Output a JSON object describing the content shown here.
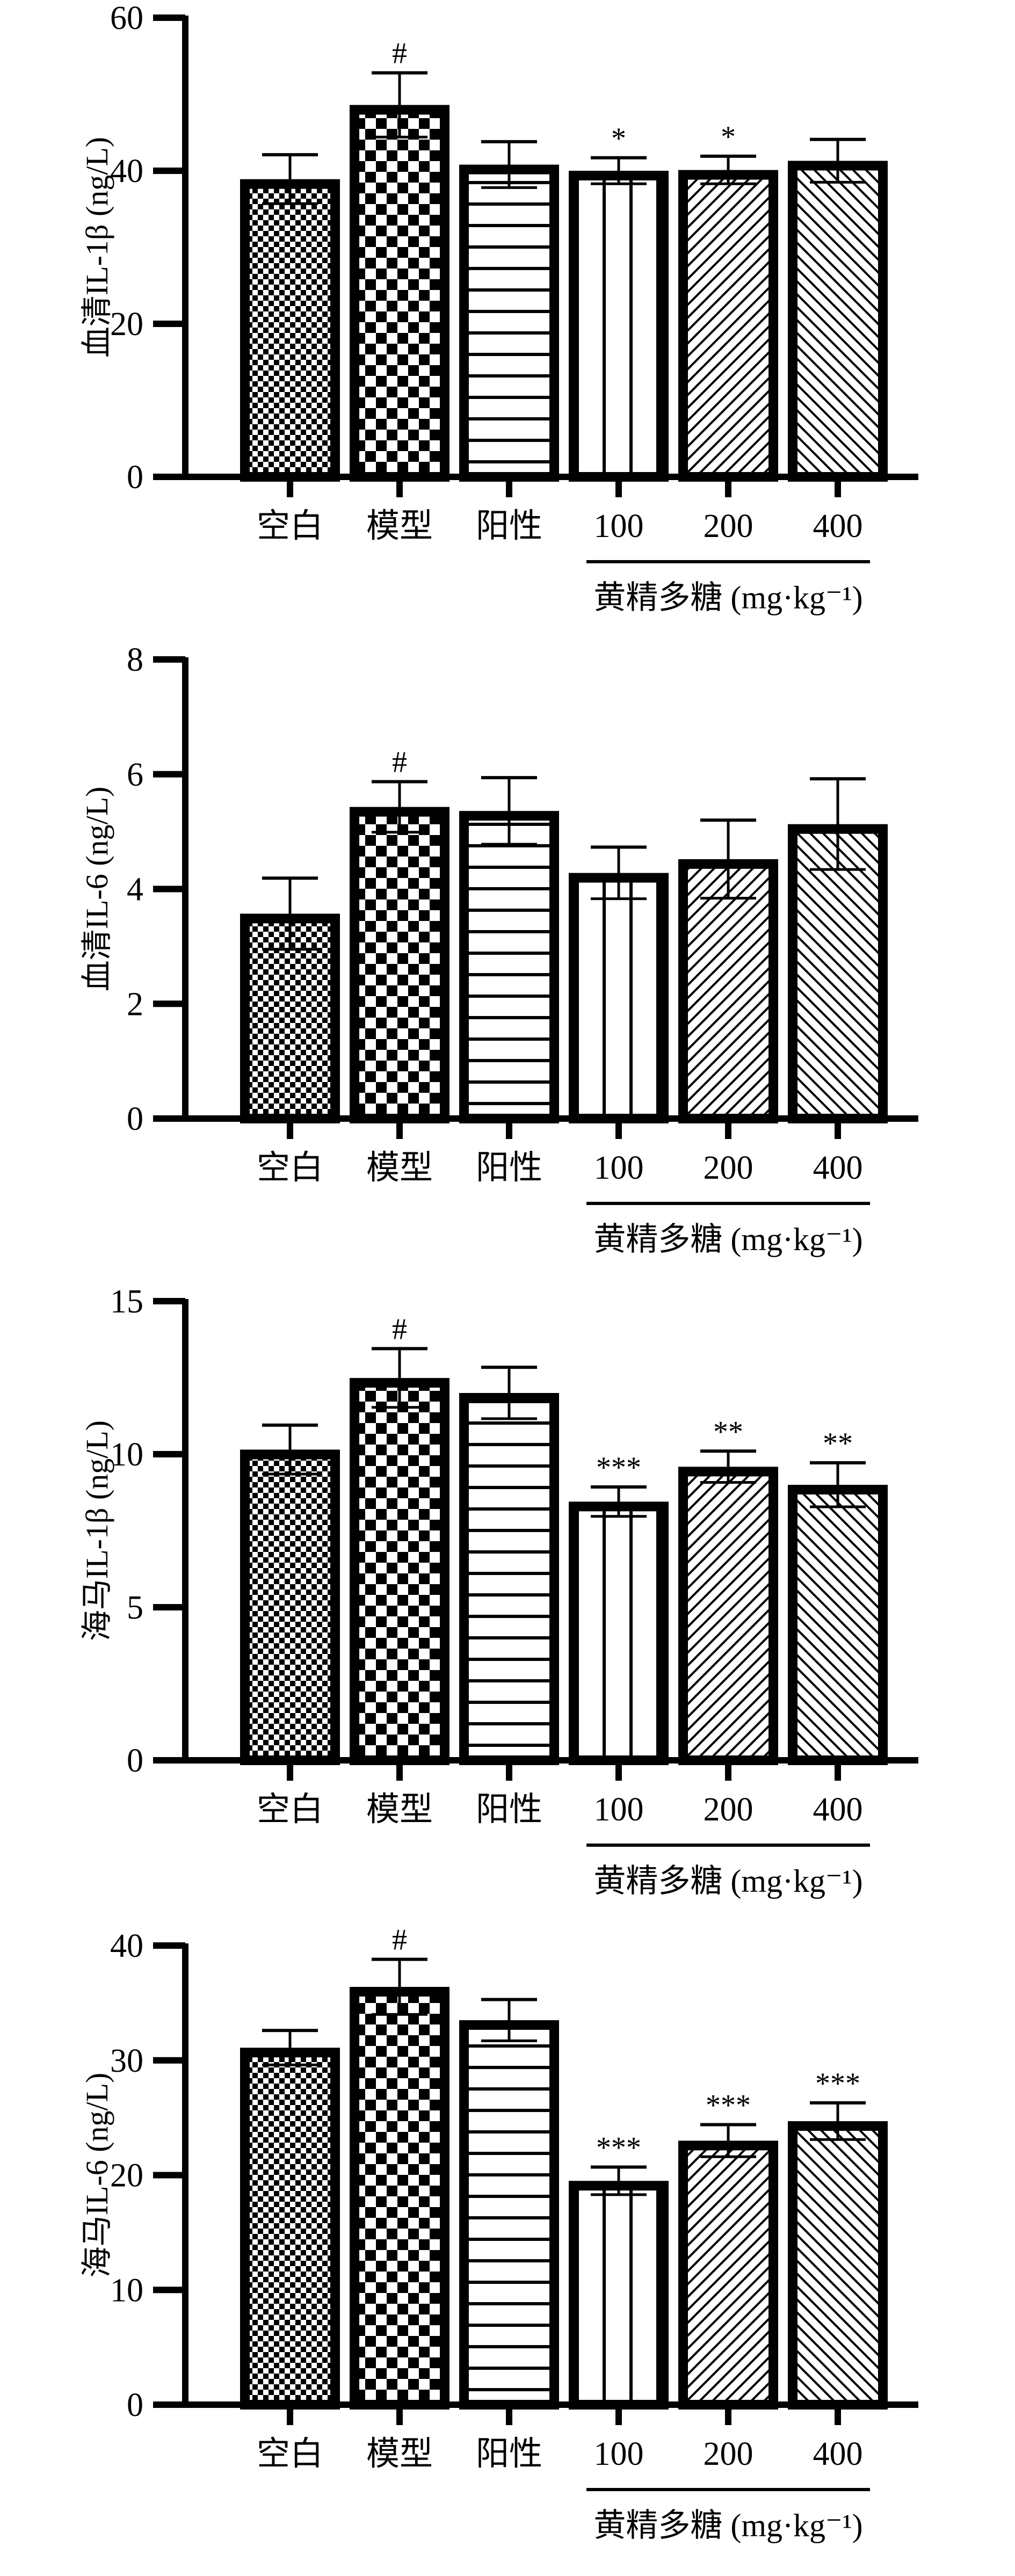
{
  "patterns": [
    "fine-check",
    "check",
    "hlines",
    "vlines",
    "diag-up",
    "diag-down"
  ],
  "colors": {
    "ink": "#000000",
    "paper": "#ffffff"
  },
  "chart_data": [
    {
      "type": "bar",
      "ylabel": "血清IL-1β (ng/L)",
      "ylim": [
        0,
        60
      ],
      "yticks": [
        "0",
        "20",
        "40",
        "60"
      ],
      "ytick_values": [
        0,
        20,
        40,
        60
      ],
      "categories": [
        "空白",
        "模型",
        "阳性",
        "100",
        "200",
        "400"
      ],
      "group_label": "黄精多糖 (mg·kg⁻¹)",
      "values": [
        38.9,
        48.6,
        40.8,
        40.0,
        40.1,
        41.3
      ],
      "errors": [
        3.2,
        4.2,
        3.0,
        1.7,
        1.8,
        2.8
      ],
      "significance": [
        "",
        "#",
        "",
        "*",
        "*",
        ""
      ]
    },
    {
      "type": "bar",
      "ylabel": "血清IL-6 (ng/L)",
      "ylim": [
        0,
        8
      ],
      "yticks": [
        "0",
        "2",
        "4",
        "6",
        "8"
      ],
      "ytick_values": [
        0,
        2,
        4,
        6,
        8
      ],
      "categories": [
        "空白",
        "模型",
        "阳性",
        "100",
        "200",
        "400"
      ],
      "group_label": "黄精多糖 (mg·kg⁻¹)",
      "values": [
        3.57,
        5.43,
        5.36,
        4.28,
        4.52,
        5.13
      ],
      "errors": [
        0.62,
        0.44,
        0.58,
        0.45,
        0.68,
        0.79
      ],
      "significance": [
        "",
        "#",
        "",
        "",
        "",
        ""
      ]
    },
    {
      "type": "bar",
      "ylabel": "海马IL-1β (ng/L)",
      "ylim": [
        0,
        15
      ],
      "yticks": [
        "0",
        "5",
        "10",
        "15"
      ],
      "ytick_values": [
        0,
        5,
        10,
        15
      ],
      "categories": [
        "空白",
        "模型",
        "阳性",
        "100",
        "200",
        "400"
      ],
      "group_label": "黄精多糖 (mg·kg⁻¹)",
      "values": [
        10.15,
        12.49,
        12.0,
        8.45,
        9.59,
        9.0
      ],
      "errors": [
        0.8,
        0.96,
        0.84,
        0.48,
        0.51,
        0.72
      ],
      "significance": [
        "",
        "#",
        "",
        "***",
        "**",
        "**"
      ]
    },
    {
      "type": "bar",
      "ylabel": "海马IL-6 (ng/L)",
      "ylim": [
        0,
        40
      ],
      "yticks": [
        "0",
        "10",
        "20",
        "30",
        "40"
      ],
      "ytick_values": [
        0,
        10,
        20,
        30,
        40
      ],
      "categories": [
        "空白",
        "模型",
        "阳性",
        "100",
        "200",
        "400"
      ],
      "group_label": "黄精多糖 (mg·kg⁻¹)",
      "values": [
        31.1,
        36.4,
        33.5,
        19.5,
        23.0,
        24.7
      ],
      "errors": [
        1.5,
        2.4,
        1.8,
        1.2,
        1.4,
        1.6
      ],
      "significance": [
        "",
        "#",
        "",
        "***",
        "***",
        "***"
      ]
    }
  ]
}
